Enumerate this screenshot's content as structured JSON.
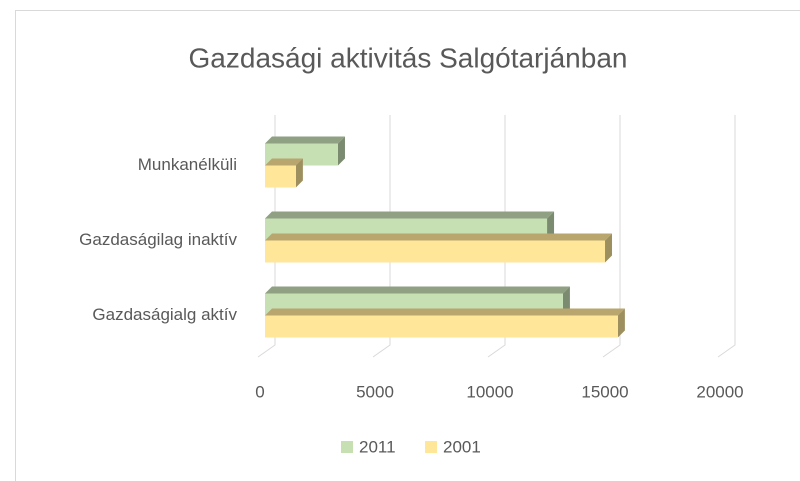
{
  "chart_data": {
    "type": "bar3d",
    "orientation": "horizontal",
    "title": "Gazdasági aktivitás Salgótarjánban",
    "categories": [
      "Gazdaságialg aktív",
      "Gazdaságilag inaktív",
      "Munkanélküli"
    ],
    "series": [
      {
        "name": "2011",
        "color": "#c6e0b4",
        "values": [
          13040,
          12350,
          3260
        ]
      },
      {
        "name": "2001",
        "color": "#ffe699",
        "values": [
          15430,
          14870,
          1430
        ]
      }
    ],
    "xlim": [
      0,
      20000
    ],
    "xticks": [
      0,
      5000,
      10000,
      15000,
      20000
    ],
    "grid": true,
    "legend": "bottom"
  }
}
